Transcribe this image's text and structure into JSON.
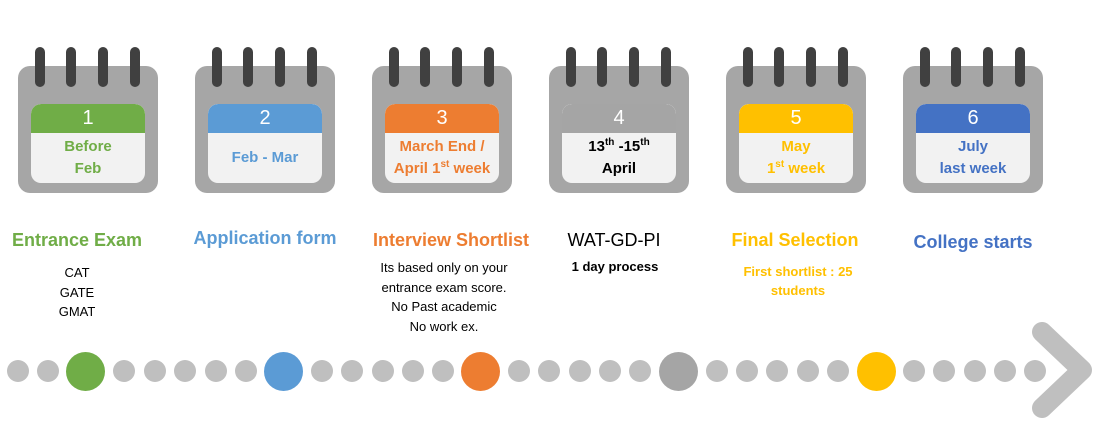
{
  "colors": {
    "green": "#70ad47",
    "blue": "#5b9bd5",
    "orange": "#ed7d31",
    "gray": "#a5a5a5",
    "yellow": "#ffc000",
    "darkblue": "#4472c4",
    "dot": "#bfbfbf",
    "ring": "#404040",
    "calendar": "#a6a6a6"
  },
  "steps": [
    {
      "number": "1",
      "date_line1": "Before",
      "date_line2": "Feb",
      "title": "Entrance Exam",
      "desc": [
        "CAT",
        "GATE",
        "GMAT"
      ],
      "color": "#70ad47"
    },
    {
      "number": "2",
      "date_line1": "Feb - Mar",
      "date_line2": "",
      "title": "Application form",
      "desc": [],
      "color": "#5b9bd5"
    },
    {
      "number": "3",
      "date_line1": "March End /",
      "date_line2_pre": "April 1",
      "date_line2_sup": "st",
      "date_line2_post": " week",
      "title": "Interview Shortlist",
      "desc": [
        "Its based only on your",
        "entrance exam score.",
        "No Past academic",
        "No work ex."
      ],
      "color": "#ed7d31"
    },
    {
      "number": "4",
      "date_line1_pre": "13",
      "date_line1_sup1": "th",
      "date_line1_mid": " -15",
      "date_line1_sup2": "th",
      "date_line2": "April",
      "title": "WAT-GD-PI",
      "desc": [
        "1 day process"
      ],
      "color": "#a5a5a5"
    },
    {
      "number": "5",
      "date_line1": "May",
      "date_line2_pre": "1",
      "date_line2_sup": "st",
      "date_line2_post": " week",
      "title": "Final Selection",
      "desc": [
        "First shortlist : 25",
        "students"
      ],
      "color": "#ffc000"
    },
    {
      "number": "6",
      "date_line1": "July",
      "date_line2": "last week",
      "title": "College starts",
      "desc": [],
      "color": "#4472c4"
    }
  ],
  "timeline": {
    "big_dots": [
      "#70ad47",
      "#5b9bd5",
      "#ed7d31",
      "#a5a5a5",
      "#ffc000"
    ]
  }
}
